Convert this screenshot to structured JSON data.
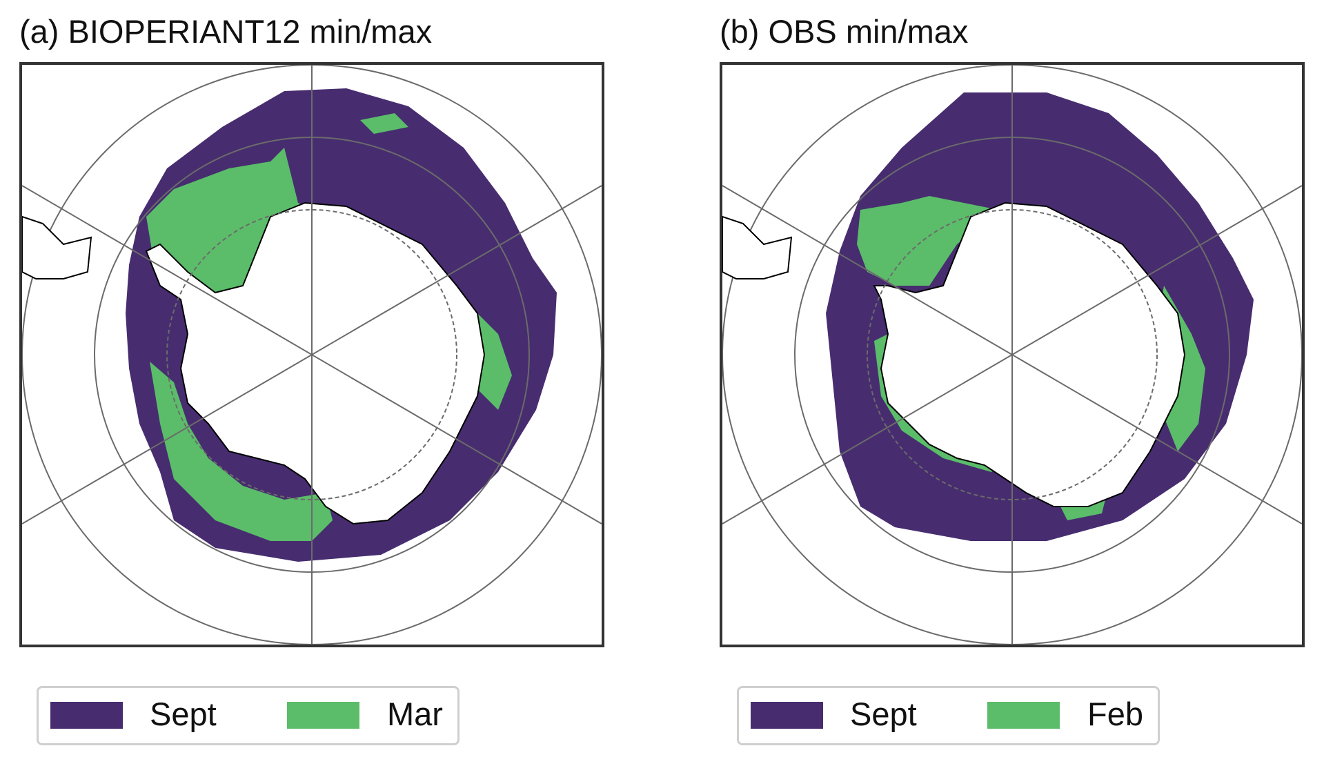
{
  "panels": [
    {
      "title": "(a) BIOPERIANT12 min/max",
      "legend": [
        {
          "label": "Sept",
          "color": "#472d6f"
        },
        {
          "label": "Mar",
          "color": "#5bbd6a"
        }
      ]
    },
    {
      "title": "(b) OBS min/max",
      "legend": [
        {
          "label": "Sept",
          "color": "#472d6f"
        },
        {
          "label": "Feb",
          "color": "#5bbd6a"
        }
      ]
    }
  ],
  "colors": {
    "sea_ice_max": "#472d6f",
    "sea_ice_min": "#5bbd6a",
    "land": "#ffffff",
    "gridlines": "#6b6b6b",
    "frame": "#333333"
  }
}
